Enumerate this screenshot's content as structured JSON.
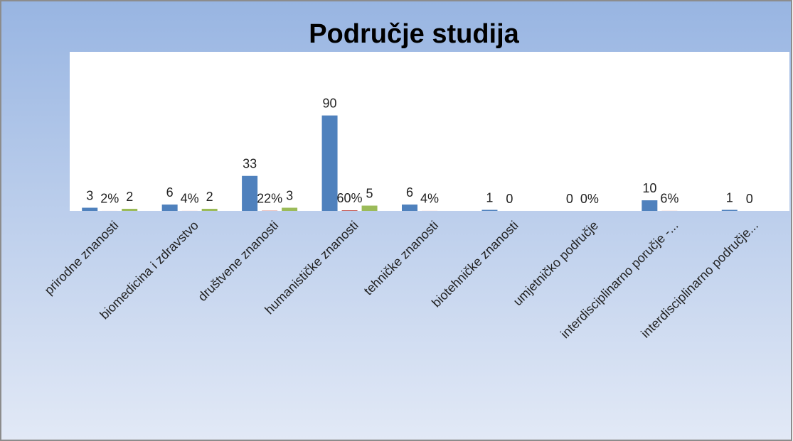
{
  "chart_data": {
    "type": "bar",
    "title": "Područje studija",
    "categories": [
      "prirodne znanosti",
      "biomedicina i zdravstvo",
      "društvene znanosti",
      "humanističke znanosti",
      "tehničke znanosti",
      "biotehničke znanosti",
      "umjetničko područje",
      "interdisciplinarno poručje -...",
      "interdisciplinarno područje..."
    ],
    "series": [
      {
        "color": "#4f81bd",
        "values": [
          3,
          6,
          33,
          90,
          6,
          1,
          0,
          10,
          1
        ]
      },
      {
        "color": "#c0504d",
        "values": [
          0.02,
          0.04,
          0.22,
          0.6,
          0.04,
          0,
          0,
          0.06,
          0
        ],
        "value_labels": [
          "2%",
          "4%",
          "22%",
          "60%",
          "4%",
          "0",
          "0%",
          "6%",
          "0"
        ]
      },
      {
        "color": "#9bbb59",
        "values": [
          2,
          2,
          3,
          5,
          null,
          null,
          null,
          null,
          null
        ]
      }
    ],
    "ylim": [
      0,
      150
    ]
  }
}
